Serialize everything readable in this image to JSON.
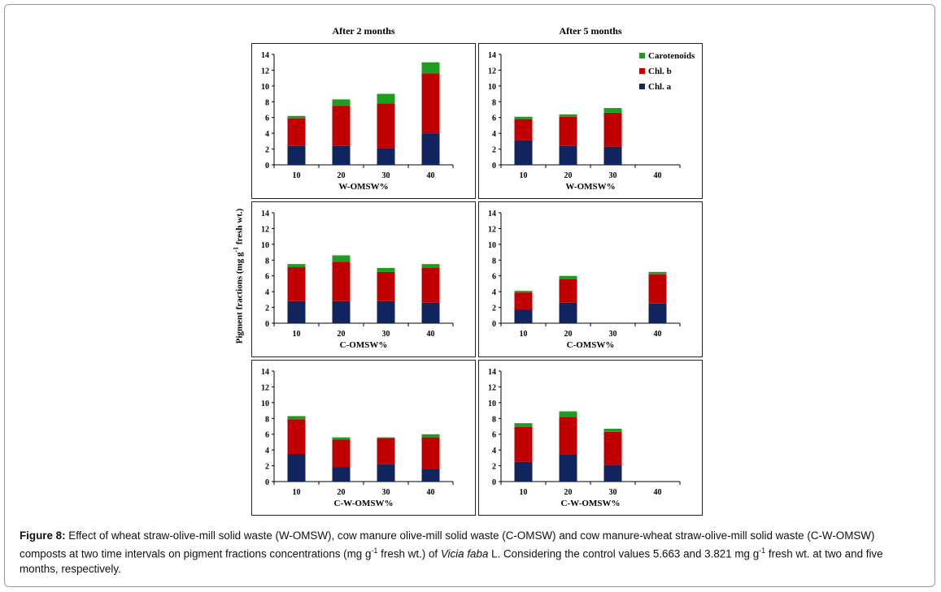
{
  "colors": {
    "chl_a": "#10245e",
    "chl_b": "#c00000",
    "carotenoids": "#1e9e1e"
  },
  "column_titles": [
    "After 2 months",
    "After 5 months"
  ],
  "y_axis_label": "Pigment fractions (mg g-1 fresh wt.)",
  "y_axis_label_parts": {
    "a": "Pigment fractions (mg g",
    "sup": "-1",
    "b": " fresh wt.)"
  },
  "legend": [
    "Carotenoids",
    "Chl. b",
    "Chl. a"
  ],
  "caption": {
    "label": "Figure 8:",
    "t1": " Effect of wheat straw-olive-mill solid waste (W-OMSW), cow manure olive-mill solid waste (C-OMSW) and cow manure-wheat straw-olive-mill solid waste (C-W-OMSW) composts at two time intervals on pigment fractions concentrations (mg g",
    "sup1": "-1",
    "t2": " fresh wt.) of ",
    "italic": "Vicia faba",
    "t3": " L. Considering the control values 5.663 and 3.821 mg g",
    "sup2": "-1",
    "t4": " fresh wt. at two and five months, respectively."
  },
  "chart_data": [
    {
      "type": "bar",
      "stacked": true,
      "title": "After 2 months",
      "xlabel": "W-OMSW%",
      "ylim": [
        0,
        14
      ],
      "yticks": [
        0,
        2,
        4,
        6,
        8,
        10,
        12,
        14
      ],
      "categories": [
        "10",
        "20",
        "30",
        "40"
      ],
      "series": [
        {
          "name": "Chl. a",
          "values": [
            2.4,
            2.4,
            2.1,
            4.0
          ]
        },
        {
          "name": "Chl. b",
          "values": [
            3.5,
            5.1,
            5.7,
            7.6
          ]
        },
        {
          "name": "Carotenoids",
          "values": [
            0.3,
            0.8,
            1.2,
            1.4
          ]
        }
      ]
    },
    {
      "type": "bar",
      "stacked": true,
      "title": "After 5 months",
      "xlabel": "W-OMSW%",
      "ylim": [
        0,
        14
      ],
      "yticks": [
        0,
        2,
        4,
        6,
        8,
        10,
        12,
        14
      ],
      "categories": [
        "10",
        "20",
        "30",
        "40"
      ],
      "legend": "top-right",
      "series": [
        {
          "name": "Chl. a",
          "values": [
            3.1,
            2.4,
            2.3,
            0
          ]
        },
        {
          "name": "Chl. b",
          "values": [
            2.7,
            3.7,
            4.3,
            0
          ]
        },
        {
          "name": "Carotenoids",
          "values": [
            0.3,
            0.3,
            0.6,
            0
          ]
        }
      ]
    },
    {
      "type": "bar",
      "stacked": true,
      "title": "After 2 months",
      "xlabel": "C-OMSW%",
      "ylim": [
        0,
        14
      ],
      "yticks": [
        0,
        2,
        4,
        6,
        8,
        10,
        12,
        14
      ],
      "categories": [
        "10",
        "20",
        "30",
        "40"
      ],
      "series": [
        {
          "name": "Chl. a",
          "values": [
            2.8,
            2.8,
            2.8,
            2.6
          ]
        },
        {
          "name": "Chl. b",
          "values": [
            4.3,
            5.0,
            3.7,
            4.4
          ]
        },
        {
          "name": "Carotenoids",
          "values": [
            0.4,
            0.8,
            0.5,
            0.5
          ]
        }
      ]
    },
    {
      "type": "bar",
      "stacked": true,
      "title": "After 5 months",
      "xlabel": "C-OMSW%",
      "ylim": [
        0,
        14
      ],
      "yticks": [
        0,
        2,
        4,
        6,
        8,
        10,
        12,
        14
      ],
      "categories": [
        "10",
        "20",
        "30",
        "40"
      ],
      "series": [
        {
          "name": "Chl. a",
          "values": [
            1.7,
            2.6,
            0,
            2.5
          ]
        },
        {
          "name": "Chl. b",
          "values": [
            2.2,
            3.0,
            0,
            3.7
          ]
        },
        {
          "name": "Carotenoids",
          "values": [
            0.2,
            0.4,
            0,
            0.3
          ]
        }
      ]
    },
    {
      "type": "bar",
      "stacked": true,
      "title": "After 2 months",
      "xlabel": "C-W-OMSW%",
      "ylim": [
        0,
        14
      ],
      "yticks": [
        0,
        2,
        4,
        6,
        8,
        10,
        12,
        14
      ],
      "categories": [
        "10",
        "20",
        "30",
        "40"
      ],
      "series": [
        {
          "name": "Chl. a",
          "values": [
            3.5,
            1.8,
            2.2,
            1.6
          ]
        },
        {
          "name": "Chl. b",
          "values": [
            4.4,
            3.5,
            3.3,
            4.0
          ]
        },
        {
          "name": "Carotenoids",
          "values": [
            0.4,
            0.3,
            0.1,
            0.4
          ]
        }
      ]
    },
    {
      "type": "bar",
      "stacked": true,
      "title": "After 5 months",
      "xlabel": "C-W-OMSW%",
      "ylim": [
        0,
        14
      ],
      "yticks": [
        0,
        2,
        4,
        6,
        8,
        10,
        12,
        14
      ],
      "categories": [
        "10",
        "20",
        "30",
        "40"
      ],
      "series": [
        {
          "name": "Chl. a",
          "values": [
            2.5,
            3.4,
            2.1,
            0
          ]
        },
        {
          "name": "Chl. b",
          "values": [
            4.4,
            4.8,
            4.2,
            0
          ]
        },
        {
          "name": "Carotenoids",
          "values": [
            0.5,
            0.7,
            0.4,
            0
          ]
        }
      ]
    }
  ]
}
